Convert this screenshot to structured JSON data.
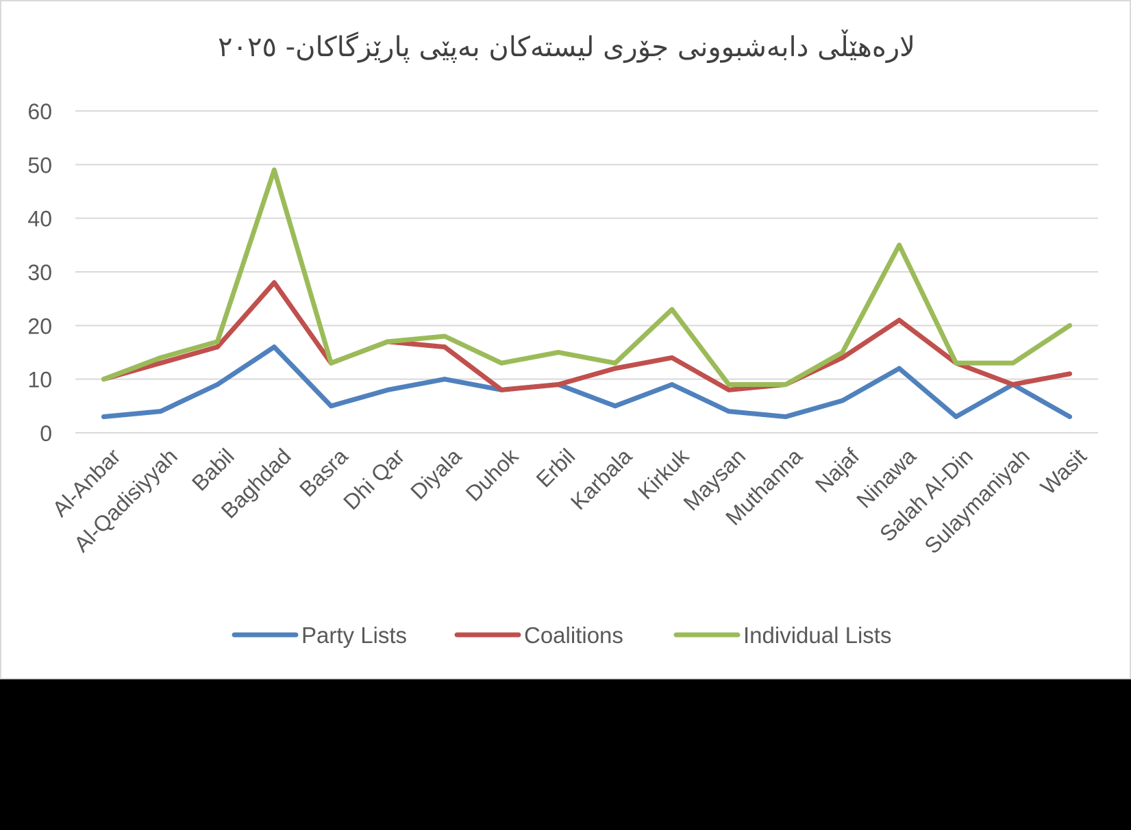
{
  "chart_data": {
    "type": "line",
    "title": "لارەهێڵی دابەشبوونی جۆری لیستەکان بەپێی پارێزگاکان- ٢٠٢٥",
    "xlabel": "",
    "ylabel": "",
    "ylim": [
      0,
      60
    ],
    "yticks": [
      0,
      10,
      20,
      30,
      40,
      50,
      60
    ],
    "grid": true,
    "legend_position": "bottom",
    "categories": [
      "Al-Anbar",
      "Al-Qadisiyyah",
      "Babil",
      "Baghdad",
      "Basra",
      "Dhi Qar",
      "Diyala",
      "Duhok",
      "Erbil",
      "Karbala",
      "Kirkuk",
      "Maysan",
      "Muthanna",
      "Najaf",
      "Ninawa",
      "Salah Al-Din",
      "Sulaymaniyah",
      "Wasit"
    ],
    "series": [
      {
        "name": "Party Lists",
        "color": "#4f81bd",
        "values": [
          3,
          4,
          9,
          16,
          5,
          8,
          10,
          8,
          9,
          5,
          9,
          4,
          3,
          6,
          12,
          3,
          9,
          3
        ]
      },
      {
        "name": "Coalitions",
        "color": "#c0504d",
        "values": [
          10,
          13,
          16,
          28,
          13,
          17,
          16,
          8,
          9,
          12,
          14,
          8,
          9,
          14,
          21,
          13,
          9,
          11
        ]
      },
      {
        "name": "Individual Lists",
        "color": "#9bbb59",
        "values": [
          10,
          14,
          17,
          49,
          13,
          17,
          18,
          13,
          15,
          13,
          23,
          9,
          9,
          15,
          35,
          13,
          13,
          20
        ]
      }
    ]
  }
}
